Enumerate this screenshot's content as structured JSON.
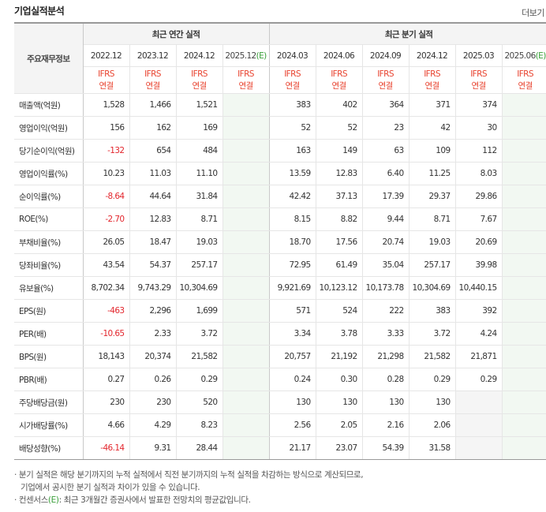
{
  "title": "기업실적분석",
  "more_label": "더보기",
  "row_header": "주요재무정보",
  "groups": {
    "annual": "최근 연간 실적",
    "quarterly": "최근 분기 실적"
  },
  "periods": [
    "2022.12",
    "2023.12",
    "2024.12",
    "2025.12",
    "2024.03",
    "2024.06",
    "2024.09",
    "2024.12",
    "2025.03",
    "2025.06"
  ],
  "estimate_mark": "(E)",
  "standard": {
    "line1": "IFRS",
    "line2": "연결"
  },
  "rows": [
    {
      "label": "매출액(억원)",
      "values": [
        "1,528",
        "1,466",
        "1,521",
        "",
        "383",
        "402",
        "364",
        "371",
        "374",
        ""
      ]
    },
    {
      "label": "영업이익(억원)",
      "values": [
        "156",
        "162",
        "169",
        "",
        "52",
        "52",
        "23",
        "42",
        "30",
        ""
      ]
    },
    {
      "label": "당기순이익(억원)",
      "values": [
        "-132",
        "654",
        "484",
        "",
        "163",
        "149",
        "63",
        "109",
        "112",
        ""
      ]
    },
    {
      "label": "영업이익률(%)",
      "values": [
        "10.23",
        "11.03",
        "11.10",
        "",
        "13.59",
        "12.83",
        "6.40",
        "11.25",
        "8.03",
        ""
      ]
    },
    {
      "label": "순이익률(%)",
      "values": [
        "-8.64",
        "44.64",
        "31.84",
        "",
        "42.42",
        "37.13",
        "17.39",
        "29.37",
        "29.86",
        ""
      ]
    },
    {
      "label": "ROE(%)",
      "values": [
        "-2.70",
        "12.83",
        "8.71",
        "",
        "8.15",
        "8.82",
        "9.44",
        "8.71",
        "7.67",
        ""
      ]
    },
    {
      "label": "부채비율(%)",
      "values": [
        "26.05",
        "18.47",
        "19.03",
        "",
        "18.70",
        "17.56",
        "20.74",
        "19.03",
        "20.69",
        ""
      ]
    },
    {
      "label": "당좌비율(%)",
      "values": [
        "43.54",
        "54.37",
        "257.17",
        "",
        "72.95",
        "61.49",
        "35.04",
        "257.17",
        "39.98",
        ""
      ]
    },
    {
      "label": "유보율(%)",
      "values": [
        "8,702.34",
        "9,743.29",
        "10,304.69",
        "",
        "9,921.69",
        "10,123.12",
        "10,173.78",
        "10,304.69",
        "10,440.15",
        ""
      ]
    },
    {
      "label": "EPS(원)",
      "values": [
        "-463",
        "2,296",
        "1,699",
        "",
        "571",
        "524",
        "222",
        "383",
        "392",
        ""
      ]
    },
    {
      "label": "PER(배)",
      "values": [
        "-10.65",
        "2.33",
        "3.72",
        "",
        "3.34",
        "3.78",
        "3.33",
        "3.72",
        "4.24",
        ""
      ]
    },
    {
      "label": "BPS(원)",
      "values": [
        "18,143",
        "20,374",
        "21,582",
        "",
        "20,757",
        "21,192",
        "21,298",
        "21,582",
        "21,871",
        ""
      ]
    },
    {
      "label": "PBR(배)",
      "values": [
        "0.27",
        "0.26",
        "0.29",
        "",
        "0.24",
        "0.30",
        "0.28",
        "0.29",
        "0.29",
        ""
      ]
    },
    {
      "label": "주당배당금(원)",
      "values": [
        "230",
        "230",
        "520",
        "",
        "130",
        "130",
        "130",
        "130",
        "",
        ""
      ]
    },
    {
      "label": "시가배당률(%)",
      "values": [
        "4.66",
        "4.29",
        "8.23",
        "",
        "2.56",
        "2.05",
        "2.16",
        "2.06",
        "",
        ""
      ]
    },
    {
      "label": "배당성향(%)",
      "values": [
        "-46.14",
        "9.31",
        "28.44",
        "",
        "21.17",
        "23.07",
        "54.39",
        "31.58",
        "",
        ""
      ]
    }
  ],
  "notes": {
    "line1": "· 분기 실적은 해당 분기까지의 누적 실적에서 직전 분기까지의 누적 실적을 차감하는 방식으로 계산되므로,",
    "line2": "기업에서 공시한 분기 실적과 차이가 있을 수 있습니다.",
    "line3_pre": "· 컨센서스",
    "line3_post": ": 최근 3개월간 증권사에서 발표한 전망치의 평균값입니다."
  },
  "colors": {
    "negative": "#e3262d",
    "standard": "#e8432f",
    "estimate": "#3aa03a",
    "estimate_bg": "#eaf6ea"
  }
}
